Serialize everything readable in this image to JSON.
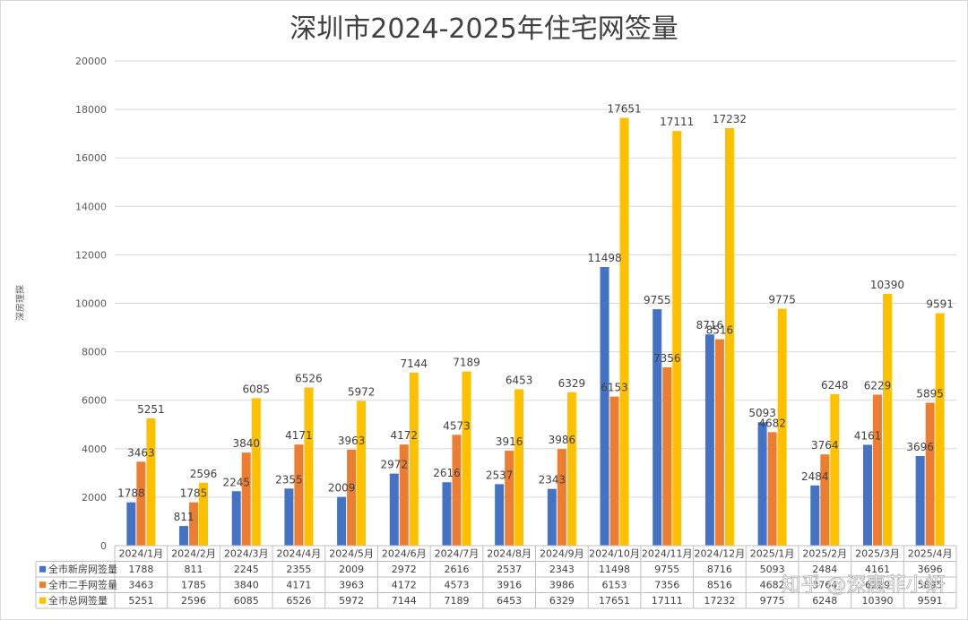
{
  "title": "深圳市2024-2025年住宅网签量",
  "watermark": "知乎 @深惠菲小姸",
  "chart_data": {
    "type": "bar",
    "title": "深圳市2024-2025年住宅网签量",
    "ylabel": "深房理探",
    "ylim": [
      0,
      20000
    ],
    "yticks": [
      0,
      2000,
      4000,
      6000,
      8000,
      10000,
      12000,
      14000,
      16000,
      18000,
      20000
    ],
    "grid": true,
    "legend": "data-table",
    "categories": [
      "2024/1月",
      "2024/2月",
      "2024/3月",
      "2024/4月",
      "2024/5月",
      "2024/6月",
      "2024/7月",
      "2024/8月",
      "2024/9月",
      "2024/10月",
      "2024/11月",
      "2024/12月",
      "2025/1月",
      "2025/2月",
      "2025/3月",
      "2025/4月"
    ],
    "series": [
      {
        "name": "全市新房网签量",
        "color": "#4472c4",
        "values": [
          1788,
          811,
          2245,
          2355,
          2009,
          2972,
          2616,
          2537,
          2343,
          11498,
          9755,
          8716,
          5093,
          2484,
          4161,
          3696
        ]
      },
      {
        "name": "全市二手网签量",
        "color": "#ed7d31",
        "values": [
          3463,
          1785,
          3840,
          4171,
          3963,
          4172,
          4573,
          3916,
          3986,
          6153,
          7356,
          8516,
          4682,
          3764,
          6229,
          5895
        ]
      },
      {
        "name": "全市总网签量",
        "color": "#ffc000",
        "values": [
          5251,
          2596,
          6085,
          6526,
          5972,
          7144,
          7189,
          6453,
          6329,
          17651,
          17111,
          17232,
          9775,
          6248,
          10390,
          9591
        ]
      }
    ]
  }
}
